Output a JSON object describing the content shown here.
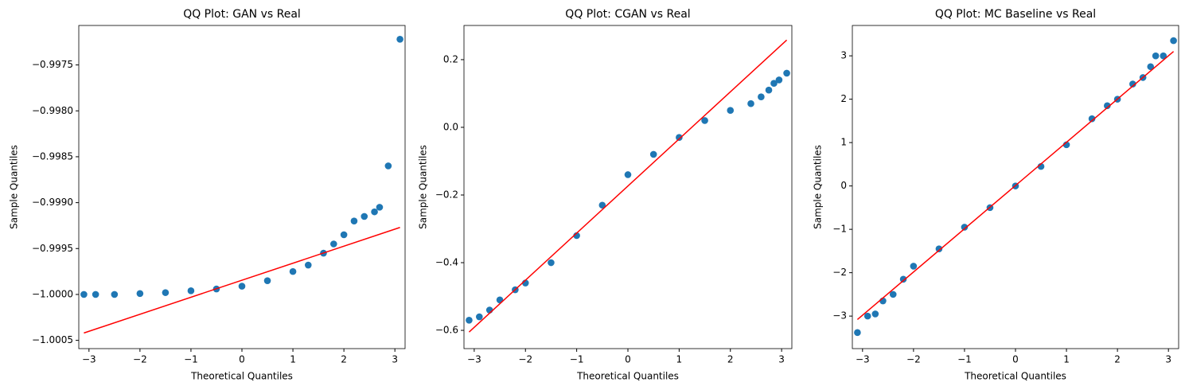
{
  "chart_data": [
    {
      "type": "scatter",
      "title": "QQ Plot: GAN vs Real",
      "xlabel": "Theoretical Quantiles",
      "ylabel": "Sample Quantiles",
      "xlim": [
        -3.2,
        3.2
      ],
      "ylim": [
        -1.00059,
        -0.99707
      ],
      "xticks": [
        {
          "value": -3,
          "label": "−3"
        },
        {
          "value": -2,
          "label": "−2"
        },
        {
          "value": -1,
          "label": "−1"
        },
        0,
        1,
        2,
        3
      ],
      "yticks": [
        {
          "value": -1.0005,
          "label": "−1.0005"
        },
        {
          "value": -1.0,
          "label": "−1.0000"
        },
        {
          "value": -0.9995,
          "label": "−0.9995"
        },
        {
          "value": -0.999,
          "label": "−0.9990"
        },
        {
          "value": -0.9985,
          "label": "−0.9985"
        },
        {
          "value": -0.998,
          "label": "−0.9980"
        },
        {
          "value": -0.9975,
          "label": "−0.9975"
        }
      ],
      "series": [
        {
          "type": "scatter",
          "color": "#1f77b4",
          "x": [
            -3.1,
            -2.87,
            -2.5,
            -2,
            -1.5,
            -1,
            -0.5,
            0,
            0.5,
            1,
            1.3,
            1.6,
            1.8,
            2,
            2.2,
            2.4,
            2.6,
            2.7,
            2.87,
            3.1
          ],
          "values": [
            -1.0,
            -1.0,
            -1.0,
            -0.99999,
            -0.99998,
            -0.99996,
            -0.99994,
            -0.99991,
            -0.99985,
            -0.99975,
            -0.99968,
            -0.99955,
            -0.99945,
            -0.99935,
            -0.9992,
            -0.99915,
            -0.9991,
            -0.99905,
            -0.9986,
            -0.99722
          ]
        },
        {
          "type": "line",
          "color": "#ff0000",
          "x": [
            -3.1,
            3.1
          ],
          "values": [
            -1.00042,
            -0.99927
          ]
        }
      ]
    },
    {
      "type": "scatter",
      "title": "QQ Plot: CGAN vs Real",
      "xlabel": "Theoretical Quantiles",
      "ylabel": "Sample Quantiles",
      "xlim": [
        -3.2,
        3.2
      ],
      "ylim": [
        -0.654,
        0.301
      ],
      "xticks": [
        {
          "value": -3,
          "label": "−3"
        },
        {
          "value": -2,
          "label": "−2"
        },
        {
          "value": -1,
          "label": "−1"
        },
        0,
        1,
        2,
        3
      ],
      "yticks": [
        {
          "value": -0.6,
          "label": "−0.6"
        },
        {
          "value": -0.4,
          "label": "−0.4"
        },
        {
          "value": -0.2,
          "label": "−0.2"
        },
        {
          "value": 0,
          "label": "0.0"
        },
        0.2
      ],
      "series": [
        {
          "type": "scatter",
          "color": "#1f77b4",
          "x": [
            -3.1,
            -2.9,
            -2.7,
            -2.5,
            -2.2,
            -2,
            -1.5,
            -1,
            -0.5,
            0,
            0.5,
            1,
            1.5,
            2,
            2.4,
            2.6,
            2.75,
            2.85,
            2.95,
            3.1
          ],
          "values": [
            -0.57,
            -0.56,
            -0.54,
            -0.51,
            -0.48,
            -0.46,
            -0.4,
            -0.32,
            -0.23,
            -0.14,
            -0.08,
            -0.03,
            0.02,
            0.05,
            0.07,
            0.09,
            0.11,
            0.13,
            0.14,
            0.16
          ]
        },
        {
          "type": "line",
          "color": "#ff0000",
          "x": [
            -3.1,
            3.1
          ],
          "values": [
            -0.605,
            0.258
          ]
        }
      ]
    },
    {
      "type": "scatter",
      "title": "QQ Plot: MC Baseline vs Real",
      "xlabel": "Theoretical Quantiles",
      "ylabel": "Sample Quantiles",
      "xlim": [
        -3.2,
        3.2
      ],
      "ylim": [
        -3.75,
        3.7
      ],
      "xticks": [
        {
          "value": -3,
          "label": "−3"
        },
        {
          "value": -2,
          "label": "−2"
        },
        {
          "value": -1,
          "label": "−1"
        },
        0,
        1,
        2,
        3
      ],
      "yticks": [
        {
          "value": -3,
          "label": "−3"
        },
        {
          "value": -2,
          "label": "−2"
        },
        {
          "value": -1,
          "label": "−1"
        },
        0,
        1,
        2,
        3
      ],
      "series": [
        {
          "type": "scatter",
          "color": "#1f77b4",
          "x": [
            -3.1,
            -2.9,
            -2.75,
            -2.6,
            -2.4,
            -2.2,
            -2,
            -1.5,
            -1,
            -0.5,
            0,
            0.5,
            1,
            1.5,
            1.8,
            2,
            2.3,
            2.5,
            2.65,
            2.75,
            2.9,
            3.1
          ],
          "values": [
            -3.38,
            -3.0,
            -2.95,
            -2.65,
            -2.5,
            -2.15,
            -1.85,
            -1.45,
            -0.95,
            -0.5,
            0,
            0.45,
            0.95,
            1.55,
            1.85,
            2.0,
            2.35,
            2.5,
            2.75,
            3.0,
            3.0,
            3.35
          ]
        },
        {
          "type": "line",
          "color": "#ff0000",
          "x": [
            -3.1,
            3.1
          ],
          "values": [
            -3.08,
            3.1
          ]
        }
      ]
    }
  ]
}
